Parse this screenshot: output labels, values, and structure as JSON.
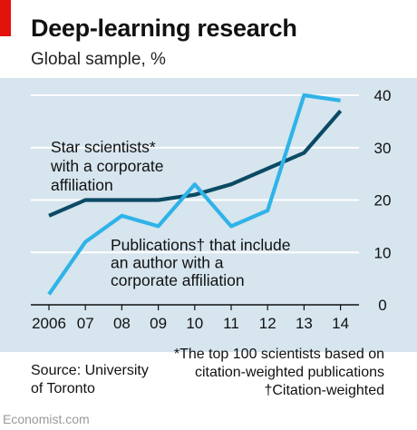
{
  "header": {
    "title": "Deep-learning research",
    "subtitle": "Global sample, %"
  },
  "colors": {
    "accent_red": "#e3120b",
    "background": "#d6e5ee",
    "star_scientists_line": "#0b4a64",
    "publications_line": "#2fb3e8"
  },
  "footer": {
    "source_line1": "Source: University",
    "source_line2": "of Toronto",
    "footnote_line1": "*The top 100 scientists based on",
    "footnote_line2": "citation-weighted publications",
    "footnote_line3": "†Citation-weighted",
    "credit": "Economist.com"
  },
  "chart_data": {
    "type": "line",
    "title": "Deep-learning research",
    "subtitle": "Global sample, %",
    "categories": [
      "2006",
      "07",
      "08",
      "09",
      "10",
      "11",
      "12",
      "13",
      "14"
    ],
    "x": [
      2006,
      2007,
      2008,
      2009,
      2010,
      2011,
      2012,
      2013,
      2014
    ],
    "ylim": [
      0,
      40
    ],
    "yticks": [
      "0",
      "10",
      "20",
      "30",
      "40"
    ],
    "grid": true,
    "series": [
      {
        "name": "Star scientists* with a corporate affiliation",
        "label_lines": [
          "Star scientists*",
          "with a corporate",
          "affiliation"
        ],
        "color": "#0b4a64",
        "values": [
          17,
          20,
          20,
          20,
          21,
          23,
          26,
          29,
          37
        ]
      },
      {
        "name": "Publications† that include an author with a corporate affiliation",
        "label_lines": [
          "Publications† that include",
          "an author with a",
          "corporate affiliation"
        ],
        "color": "#2fb3e8",
        "values": [
          2,
          12,
          17,
          15,
          23,
          15,
          18,
          40,
          39
        ]
      }
    ]
  }
}
